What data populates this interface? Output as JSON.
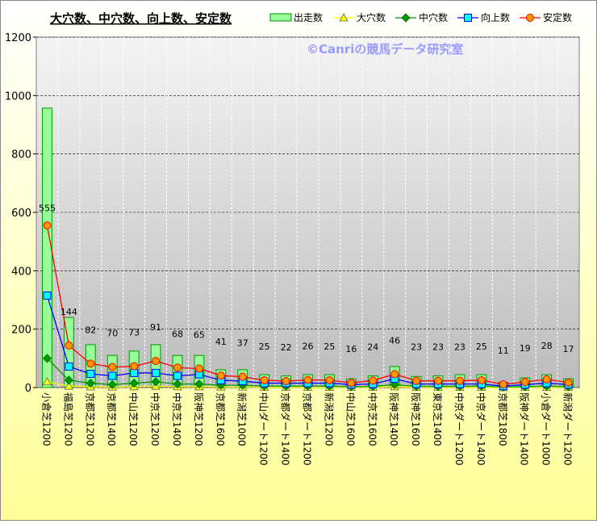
{
  "chart_data": {
    "type": "combo",
    "title": "大穴数、中穴数、向上数、安定数",
    "watermark": "©Canriの競馬データ研究室",
    "categories": [
      "小倉芝1200",
      "福島芝1200",
      "京都芝1200",
      "京都芝1400",
      "中山芝1200",
      "中京芝1200",
      "中京芝1400",
      "阪神芝1200",
      "京都芝1600",
      "新潟芝1000",
      "中山ダート1200",
      "京都ダート1400",
      "京都ダート1200",
      "新潟芝1200",
      "中山芝1600",
      "中京芝1600",
      "阪神芝1400",
      "阪神芝1600",
      "東京芝1400",
      "中京ダート1200",
      "中京ダート1400",
      "京都芝1800",
      "阪神ダート1400",
      "小倉ダート1000",
      "新潟ダート1200"
    ],
    "series": [
      {
        "name": "出走数",
        "type": "bar",
        "color": "#99ff99",
        "values": [
          957,
          240,
          147,
          110,
          125,
          147,
          110,
          110,
          61,
          61,
          44,
          40,
          44,
          44,
          30,
          40,
          72,
          38,
          40,
          44,
          44,
          17,
          33,
          44,
          30
        ]
      },
      {
        "name": "大穴数",
        "type": "line",
        "marker": "triangle",
        "color": "#ffff00",
        "values": [
          20,
          5,
          3,
          2,
          3,
          5,
          3,
          3,
          2,
          2,
          1,
          1,
          1,
          1,
          1,
          1,
          3,
          1,
          1,
          1,
          1,
          0,
          1,
          1,
          1
        ]
      },
      {
        "name": "中穴数",
        "type": "line",
        "marker": "diamond",
        "color": "#009900",
        "values": [
          100,
          25,
          15,
          10,
          15,
          20,
          12,
          12,
          8,
          8,
          5,
          5,
          5,
          5,
          3,
          4,
          10,
          4,
          4,
          4,
          5,
          2,
          3,
          5,
          3
        ]
      },
      {
        "name": "向上数",
        "type": "line",
        "marker": "square",
        "color": "#0000ff",
        "values": [
          315,
          72,
          47,
          40,
          50,
          50,
          40,
          45,
          25,
          22,
          15,
          15,
          15,
          15,
          10,
          12,
          30,
          12,
          12,
          12,
          12,
          5,
          10,
          15,
          10
        ]
      },
      {
        "name": "安定数",
        "type": "line",
        "marker": "circle",
        "color": "#ff0000",
        "values": [
          555,
          144,
          82,
          70,
          73,
          91,
          68,
          65,
          41,
          37,
          25,
          22,
          26,
          25,
          16,
          24,
          46,
          23,
          23,
          23,
          25,
          11,
          19,
          28,
          17
        ],
        "data_labels": true
      }
    ],
    "ylim": [
      0,
      1200
    ],
    "yticks": [
      0,
      200,
      400,
      600,
      800,
      1000,
      1200
    ],
    "grid": true,
    "legend": "top-right"
  }
}
